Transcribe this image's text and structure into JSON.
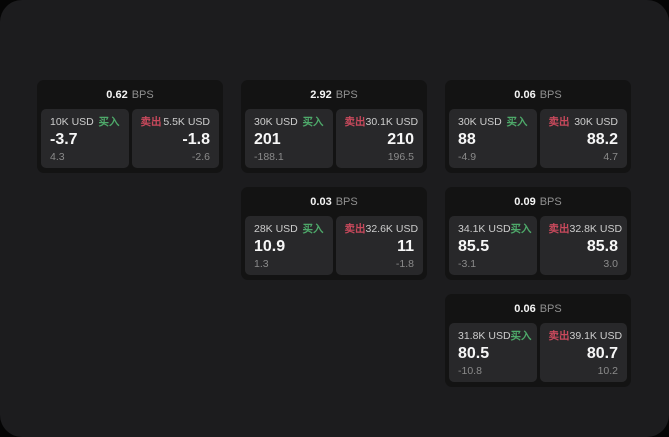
{
  "labels": {
    "bps": "BPS",
    "buy": "买入",
    "sell": "卖出"
  },
  "colors": {
    "panel_bg": "#1c1c1e",
    "card_bg": "#131313",
    "tile_bg": "#28282a",
    "buy_green": "#4ea96a",
    "sell_red": "#c9495c"
  },
  "cards": [
    {
      "bps_value": "0.62",
      "buy": {
        "notional": "10K USD",
        "value": "-3.7",
        "sub_value": "4.3"
      },
      "sell": {
        "notional": "5.5K USD",
        "value": "-1.8",
        "sub_value": "-2.6"
      }
    },
    {
      "bps_value": "2.92",
      "buy": {
        "notional": "30K USD",
        "value": "201",
        "sub_value": "-188.1"
      },
      "sell": {
        "notional": "30.1K USD",
        "value": "210",
        "sub_value": "196.5"
      }
    },
    {
      "bps_value": "0.06",
      "buy": {
        "notional": "30K USD",
        "value": "88",
        "sub_value": "-4.9"
      },
      "sell": {
        "notional": "30K USD",
        "value": "88.2",
        "sub_value": "4.7"
      }
    },
    {
      "bps_value": "0.03",
      "buy": {
        "notional": "28K USD",
        "value": "10.9",
        "sub_value": "1.3"
      },
      "sell": {
        "notional": "32.6K USD",
        "value": "11",
        "sub_value": "-1.8"
      }
    },
    {
      "bps_value": "0.09",
      "buy": {
        "notional": "34.1K USD",
        "value": "85.5",
        "sub_value": "-3.1"
      },
      "sell": {
        "notional": "32.8K USD",
        "value": "85.8",
        "sub_value": "3.0"
      }
    },
    {
      "bps_value": "0.06",
      "buy": {
        "notional": "31.8K USD",
        "value": "80.5",
        "sub_value": "-10.8"
      },
      "sell": {
        "notional": "39.1K USD",
        "value": "80.7",
        "sub_value": "10.2"
      }
    }
  ]
}
